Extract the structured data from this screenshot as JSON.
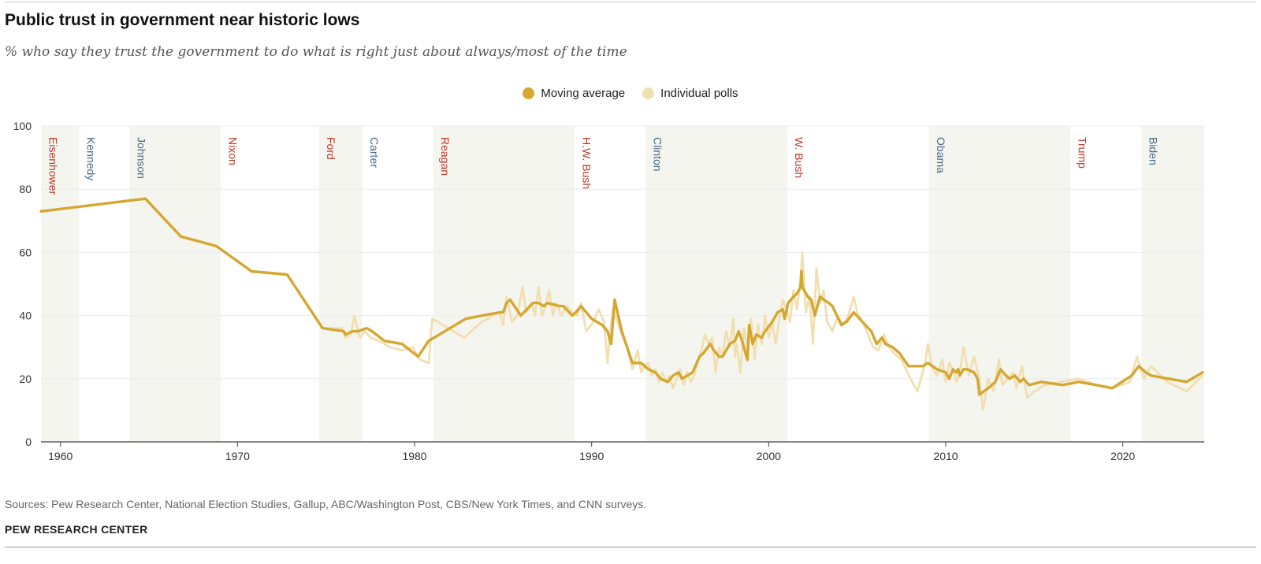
{
  "title": "Public trust in government near historic lows",
  "subtitle": "% who say they trust the government to do what is right just about always/most of the time",
  "source": "Sources: Pew Research Center, National Election Studies, Gallup, ABC/Washington Post, CBS/New York Times, and CNN surveys.",
  "brand": "PEW RESEARCH CENTER",
  "chart_data": {
    "type": "line",
    "title": "Public trust in government near historic lows",
    "xlabel": "",
    "ylabel": "",
    "xlim": [
      1958.9,
      2024.6
    ],
    "ylim": [
      0,
      100
    ],
    "x_ticks": [
      1960,
      1970,
      1980,
      1990,
      2000,
      2010,
      2020
    ],
    "y_ticks": [
      0,
      20,
      40,
      60,
      80,
      100
    ],
    "legend": {
      "placement": "top-center",
      "entries": [
        {
          "label": "Moving average",
          "color": "#d4a731"
        },
        {
          "label": "Individual polls",
          "color": "#f0dfb0"
        }
      ]
    },
    "presidents": [
      {
        "name": "Eisenhower",
        "start": 1958.9,
        "end": 1961.05,
        "party": "R",
        "shaded": true
      },
      {
        "name": "Kennedy",
        "start": 1961.05,
        "end": 1963.9,
        "party": "D",
        "shaded": false
      },
      {
        "name": "Johnson",
        "start": 1963.9,
        "end": 1969.05,
        "party": "D",
        "shaded": true
      },
      {
        "name": "Nixon",
        "start": 1969.05,
        "end": 1974.6,
        "party": "R",
        "shaded": false
      },
      {
        "name": "Ford",
        "start": 1974.6,
        "end": 1977.05,
        "party": "R",
        "shaded": true
      },
      {
        "name": "Carter",
        "start": 1977.05,
        "end": 1981.05,
        "party": "D",
        "shaded": false
      },
      {
        "name": "Reagan",
        "start": 1981.05,
        "end": 1989.05,
        "party": "R",
        "shaded": true
      },
      {
        "name": "H.W. Bush",
        "start": 1989.05,
        "end": 1993.05,
        "party": "R",
        "shaded": false
      },
      {
        "name": "Clinton",
        "start": 1993.05,
        "end": 2001.05,
        "party": "D",
        "shaded": true
      },
      {
        "name": "W. Bush",
        "start": 2001.05,
        "end": 2009.05,
        "party": "R",
        "shaded": false
      },
      {
        "name": "Obama",
        "start": 2009.05,
        "end": 2017.05,
        "party": "D",
        "shaded": true
      },
      {
        "name": "Trump",
        "start": 2017.05,
        "end": 2021.05,
        "party": "R",
        "shaded": false
      },
      {
        "name": "Biden",
        "start": 2021.05,
        "end": 2024.6,
        "party": "D",
        "shaded": true
      }
    ],
    "party_colors": {
      "R": "#c0392b",
      "D": "#4a6a85"
    },
    "series": [
      {
        "name": "Moving average",
        "color": "#d4a731",
        "x": [
          1958.9,
          1964.8,
          1966.8,
          1968.8,
          1970.8,
          1972.8,
          1974.8,
          1976.0,
          1976.1,
          1976.5,
          1976.8,
          1977.3,
          1977.6,
          1978.3,
          1979.3,
          1980.2,
          1980.8,
          1982.9,
          1984.8,
          1985.0,
          1985.2,
          1985.4,
          1986.0,
          1986.7,
          1987.0,
          1987.3,
          1987.5,
          1988.2,
          1988.4,
          1988.9,
          1989.1,
          1989.4,
          1990.0,
          1990.6,
          1990.9,
          1991.1,
          1991.3,
          1991.7,
          1992.3,
          1992.8,
          1993.2,
          1993.6,
          1993.9,
          1994.3,
          1994.6,
          1994.9,
          1995.1,
          1995.4,
          1995.7,
          1996.1,
          1996.3,
          1996.7,
          1996.9,
          1997.2,
          1997.4,
          1997.8,
          1998.1,
          1998.3,
          1998.5,
          1998.7,
          1998.8,
          1998.9,
          1999.1,
          1999.3,
          1999.6,
          1999.8,
          2000.2,
          2000.5,
          2000.8,
          2000.9,
          2001.1,
          2001.4,
          2001.6,
          2001.8,
          2001.85,
          2001.9,
          2002.2,
          2002.4,
          2002.6,
          2002.9,
          2003.1,
          2003.4,
          2003.6,
          2004.1,
          2004.4,
          2004.8,
          2005.3,
          2005.8,
          2006.1,
          2006.4,
          2006.6,
          2007.0,
          2007.4,
          2007.9,
          2008.3,
          2008.7,
          2009.0,
          2009.5,
          2010.0,
          2010.2,
          2010.4,
          2010.6,
          2010.7,
          2010.8,
          2011.0,
          2011.2,
          2011.6,
          2011.8,
          2011.9,
          2012.4,
          2012.8,
          2013.1,
          2013.4,
          2013.6,
          2013.9,
          2014.2,
          2014.4,
          2014.7,
          2015.4,
          2016.6,
          2017.5,
          2018.5,
          2019.4,
          2020.5,
          2020.9,
          2021.3,
          2021.6,
          2022.6,
          2023.6,
          2024.5
        ],
        "y": [
          73,
          77,
          65,
          62,
          54,
          53,
          36,
          35,
          34,
          35,
          35,
          36,
          35,
          32,
          31,
          27,
          32,
          39,
          41,
          41,
          44,
          45,
          40,
          44,
          44,
          43,
          44,
          43,
          43,
          40,
          41,
          43,
          39,
          37,
          35,
          31,
          45,
          35,
          25,
          25,
          23,
          22,
          20,
          19,
          21,
          22,
          20,
          21,
          22,
          27,
          28,
          31,
          29,
          27,
          27,
          31,
          32,
          35,
          32,
          28,
          26,
          37,
          31,
          34,
          33,
          35,
          38,
          41,
          42,
          39,
          44,
          46,
          47,
          49,
          54,
          49,
          46,
          45,
          40,
          46,
          45,
          44,
          43,
          37,
          38,
          41,
          38,
          35,
          31,
          33,
          31,
          30,
          28,
          24,
          24,
          24,
          25,
          23,
          22,
          20,
          23,
          22,
          23,
          21,
          23,
          23,
          22,
          20,
          15,
          17,
          19,
          23,
          21,
          20,
          21,
          19,
          20,
          18,
          19,
          18,
          19,
          18,
          17,
          21,
          24,
          22,
          21,
          20,
          19,
          22
        ]
      },
      {
        "name": "Individual polls",
        "color": "#f0dfb0",
        "x": [
          1958.9,
          1964.8,
          1966.8,
          1968.8,
          1970.8,
          1972.8,
          1974.8,
          1975.9,
          1976.1,
          1976.4,
          1976.6,
          1976.9,
          1977.2,
          1977.5,
          1978.0,
          1978.6,
          1979.3,
          1979.9,
          1980.3,
          1980.8,
          1981.0,
          1981.6,
          1982.8,
          1983.8,
          1984.8,
          1985.0,
          1985.2,
          1985.5,
          1985.8,
          1986.1,
          1986.3,
          1986.6,
          1986.8,
          1987.0,
          1987.2,
          1987.4,
          1987.6,
          1987.8,
          1988.0,
          1988.3,
          1988.6,
          1988.9,
          1989.2,
          1989.4,
          1989.7,
          1990.1,
          1990.4,
          1990.7,
          1990.9,
          1991.0,
          1991.1,
          1991.2,
          1991.4,
          1991.7,
          1992.0,
          1992.3,
          1992.6,
          1992.8,
          1993.0,
          1993.2,
          1993.4,
          1993.6,
          1993.8,
          1994.0,
          1994.2,
          1994.4,
          1994.6,
          1994.8,
          1995.0,
          1995.2,
          1995.4,
          1995.6,
          1995.8,
          1996.0,
          1996.2,
          1996.4,
          1996.6,
          1996.8,
          1997.0,
          1997.2,
          1997.4,
          1997.6,
          1997.8,
          1998.0,
          1998.1,
          1998.2,
          1998.4,
          1998.6,
          1998.8,
          1999.0,
          1999.2,
          1999.4,
          1999.6,
          1999.8,
          2000.0,
          2000.2,
          2000.4,
          2000.6,
          2000.8,
          2001.0,
          2001.2,
          2001.4,
          2001.6,
          2001.8,
          2001.9,
          2002.1,
          2002.3,
          2002.5,
          2002.7,
          2002.9,
          2003.1,
          2003.3,
          2003.6,
          2003.9,
          2004.2,
          2004.5,
          2004.8,
          2005.0,
          2005.3,
          2005.6,
          2005.9,
          2006.2,
          2006.5,
          2006.8,
          2007.1,
          2007.5,
          2008.0,
          2008.4,
          2008.8,
          2009.0,
          2009.2,
          2009.5,
          2009.8,
          2010.0,
          2010.2,
          2010.4,
          2010.6,
          2010.8,
          2011.0,
          2011.3,
          2011.6,
          2011.9,
          2012.1,
          2012.4,
          2012.7,
          2013.0,
          2013.2,
          2013.5,
          2013.8,
          2014.0,
          2014.3,
          2014.6,
          2015.0,
          2015.6,
          2016.5,
          2017.5,
          2018.5,
          2019.4,
          2020.4,
          2020.8,
          2021.2,
          2021.6,
          2022.5,
          2023.6,
          2024.5
        ],
        "y": [
          73,
          77,
          65,
          62,
          54,
          53,
          36,
          36,
          33,
          34,
          40,
          33,
          35,
          33,
          32,
          30,
          29,
          30,
          26,
          25,
          39,
          37,
          33,
          38,
          41,
          37,
          46,
          38,
          40,
          49,
          41,
          44,
          40,
          49,
          40,
          43,
          48,
          40,
          44,
          40,
          43,
          41,
          40,
          44,
          35,
          38,
          42,
          38,
          25,
          33,
          37,
          42,
          39,
          34,
          30,
          23,
          29,
          22,
          24,
          25,
          21,
          23,
          19,
          22,
          19,
          21,
          17,
          20,
          23,
          18,
          22,
          19,
          21,
          26,
          29,
          34,
          31,
          33,
          22,
          30,
          27,
          35,
          30,
          39,
          27,
          31,
          22,
          36,
          29,
          39,
          26,
          37,
          31,
          40,
          33,
          38,
          31,
          39,
          45,
          42,
          38,
          48,
          42,
          52,
          60,
          41,
          46,
          31,
          55,
          44,
          48,
          38,
          35,
          40,
          37,
          40,
          46,
          41,
          38,
          34,
          30,
          29,
          34,
          30,
          28,
          26,
          20,
          16,
          24,
          31,
          24,
          21,
          26,
          19,
          25,
          23,
          19,
          22,
          30,
          21,
          27,
          20,
          10,
          20,
          16,
          26,
          18,
          20,
          22,
          17,
          24,
          14,
          16,
          18,
          19,
          20,
          18,
          17,
          19,
          27,
          20,
          24,
          19,
          16,
          21
        ]
      }
    ]
  }
}
